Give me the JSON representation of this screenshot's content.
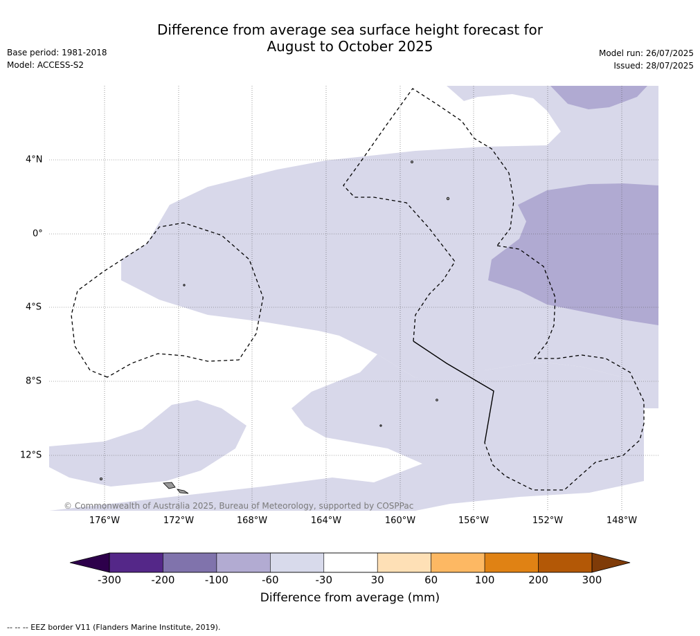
{
  "header": {
    "title_line1": "Difference from average sea surface height forecast for",
    "title_line2": "August to October 2025",
    "base_period": "Base period: 1981-2018",
    "model": "Model: ACCESS-S2",
    "model_run": "Model run: 26/07/2025",
    "issued": "Issued: 28/07/2025"
  },
  "map": {
    "longitude_labels": [
      "176°W",
      "172°W",
      "168°W",
      "164°W",
      "160°W",
      "156°W",
      "152°W",
      "148°W"
    ],
    "latitude_labels": [
      "4°N",
      "0°",
      "4°S",
      "8°S",
      "12°S"
    ],
    "copyright": "© Commonwealth of Australia 2025, Bureau of Meteorology, supported by COSPPac",
    "colors": {
      "anomaly_minus_30_to_minus_60": "#d8d8ea",
      "anomaly_minus_60_to_minus_100": "#b0aad2",
      "land": "#999999",
      "grid": "#555555",
      "eez_border": "#000000"
    }
  },
  "colorbar": {
    "tick_labels": [
      "-300",
      "-200",
      "-100",
      "-60",
      "-30",
      "30",
      "60",
      "100",
      "200",
      "300"
    ],
    "colors": [
      "#2d004b",
      "#542788",
      "#8073ac",
      "#b2abd2",
      "#d8daeb",
      "#ffffff",
      "#fee0b6",
      "#fdb863",
      "#e08214",
      "#b35806",
      "#7f3b08"
    ],
    "title": "Difference from average (mm)"
  },
  "footnote": "--  --  -- EEZ border V11 (Flanders Marine Institute, 2019)."
}
